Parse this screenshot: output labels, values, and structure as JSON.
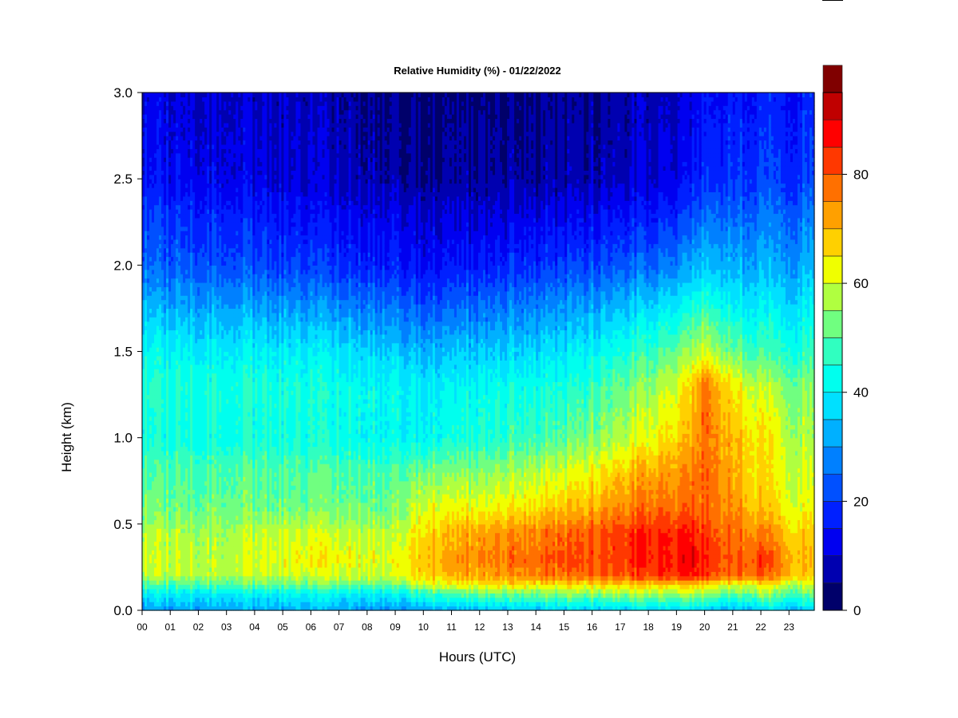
{
  "chart_data": {
    "type": "heatmap",
    "title": "Relative Humidity (%) - 01/22/2022",
    "xlabel": "Hours (UTC)",
    "ylabel": "Height (km)",
    "x_ticks": [
      "00",
      "01",
      "02",
      "03",
      "04",
      "05",
      "06",
      "07",
      "08",
      "09",
      "10",
      "11",
      "12",
      "13",
      "14",
      "15",
      "16",
      "17",
      "18",
      "19",
      "20",
      "21",
      "22",
      "23"
    ],
    "xlim": [
      0,
      23.9
    ],
    "y_ticks": [
      "0.0",
      "0.5",
      "1.0",
      "1.5",
      "2.0",
      "2.5",
      "3.0"
    ],
    "ylim": [
      0.0,
      3.0
    ],
    "colorbar": {
      "label_ticks": [
        "0",
        "20",
        "40",
        "60",
        "80"
      ],
      "range": [
        0,
        95
      ],
      "levels": [
        0,
        5,
        10,
        15,
        20,
        25,
        30,
        35,
        40,
        45,
        50,
        55,
        60,
        65,
        70,
        75,
        80,
        85,
        90,
        95
      ],
      "colors": [
        "#00006a",
        "#0000b0",
        "#0000f0",
        "#0020ff",
        "#0050ff",
        "#0080ff",
        "#00b0ff",
        "#00e0ff",
        "#00ffee",
        "#30ffc0",
        "#70ff80",
        "#b0ff40",
        "#f0ff00",
        "#ffd000",
        "#ffa000",
        "#ff7000",
        "#ff3800",
        "#ff0000",
        "#c00000",
        "#800000"
      ]
    },
    "height_km": [
      0.0,
      0.1,
      0.15,
      0.2,
      0.3,
      0.45,
      0.6,
      0.8,
      1.0,
      1.3,
      1.5,
      1.8,
      2.0,
      2.3,
      2.5,
      3.0
    ],
    "hours": [
      0,
      3,
      6,
      9,
      10,
      12,
      15,
      18,
      19.5,
      20,
      21,
      22,
      23.9
    ],
    "rh_percent": [
      [
        30,
        32,
        32,
        30,
        32,
        33,
        35,
        37,
        37,
        35,
        33,
        35,
        35
      ],
      [
        40,
        40,
        42,
        40,
        48,
        52,
        55,
        57,
        57,
        55,
        52,
        55,
        50
      ],
      [
        50,
        50,
        52,
        52,
        60,
        65,
        65,
        68,
        68,
        65,
        62,
        63,
        58
      ],
      [
        58,
        58,
        60,
        60,
        68,
        72,
        78,
        82,
        85,
        82,
        78,
        80,
        65
      ],
      [
        60,
        58,
        64,
        62,
        70,
        75,
        80,
        85,
        88,
        85,
        80,
        82,
        67
      ],
      [
        58,
        57,
        60,
        58,
        67,
        72,
        78,
        85,
        85,
        82,
        78,
        75,
        65
      ],
      [
        52,
        52,
        52,
        53,
        62,
        62,
        68,
        78,
        78,
        78,
        75,
        68,
        60
      ],
      [
        50,
        50,
        50,
        50,
        54,
        54,
        60,
        72,
        75,
        78,
        72,
        65,
        58
      ],
      [
        44,
        44,
        44,
        42,
        42,
        45,
        50,
        62,
        70,
        78,
        70,
        65,
        55
      ],
      [
        46,
        45,
        44,
        42,
        40,
        42,
        44,
        55,
        65,
        77,
        65,
        58,
        52
      ],
      [
        42,
        40,
        40,
        36,
        34,
        35,
        38,
        48,
        55,
        60,
        52,
        48,
        45
      ],
      [
        32,
        30,
        28,
        25,
        22,
        24,
        28,
        35,
        40,
        45,
        40,
        38,
        38
      ],
      [
        25,
        22,
        20,
        17,
        15,
        16,
        20,
        25,
        30,
        35,
        33,
        32,
        32
      ],
      [
        20,
        17,
        14,
        12,
        10,
        10,
        12,
        16,
        20,
        25,
        25,
        25,
        25
      ],
      [
        15,
        12,
        10,
        7,
        6,
        6,
        7,
        10,
        14,
        18,
        20,
        20,
        20
      ],
      [
        12,
        10,
        8,
        5,
        4,
        4,
        5,
        8,
        10,
        14,
        16,
        16,
        16
      ]
    ]
  }
}
